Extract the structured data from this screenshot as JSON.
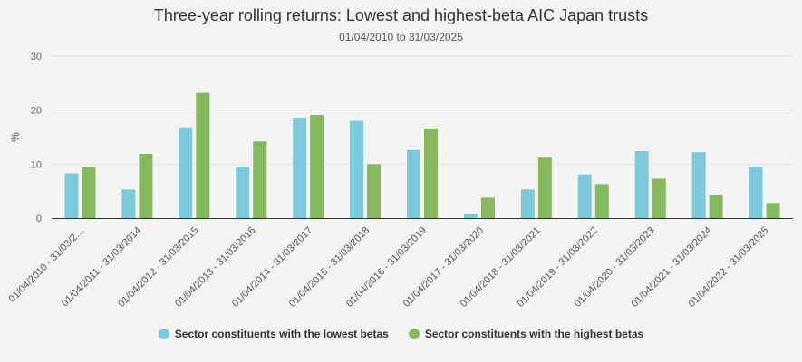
{
  "chart_data": {
    "type": "bar",
    "title": "Three-year rolling returns: Lowest and highest-beta AIC Japan trusts",
    "subtitle": "01/04/2010 to 31/03/2025",
    "ylabel": "%",
    "xlabel": "",
    "ylim": [
      0,
      30
    ],
    "yticks": [
      0,
      10,
      20,
      30
    ],
    "grid": true,
    "legend_position": "bottom",
    "categories": [
      "01/04/2010 - 31/03/2…",
      "01/04/2011 - 31/03/2014",
      "01/04/2012 - 31/03/2015",
      "01/04/2013 - 31/03/2016",
      "01/04/2014 - 31/03/2017",
      "01/04/2015 - 31/03/2018",
      "01/04/2016 - 31/03/2019",
      "01/04/2017 - 31/03/2020",
      "01/04/2018 - 31/03/2021",
      "01/04/2019 - 31/03/2022",
      "01/04/2020 - 31/03/2023",
      "01/04/2021 - 31/03/2024",
      "01/04/2022 - 31/03/2025"
    ],
    "series": [
      {
        "name": "Sector constituents with the lowest betas",
        "color": "#7ec8dc",
        "values": [
          8.3,
          5.3,
          16.8,
          9.5,
          18.6,
          18.0,
          12.6,
          0.8,
          5.3,
          8.1,
          12.4,
          12.2,
          9.5
        ]
      },
      {
        "name": "Sector constituents with the highest betas",
        "color": "#85b85f",
        "values": [
          9.5,
          11.9,
          23.2,
          14.2,
          19.1,
          10.0,
          16.6,
          3.8,
          11.2,
          6.3,
          7.3,
          4.3,
          2.8
        ]
      }
    ]
  }
}
